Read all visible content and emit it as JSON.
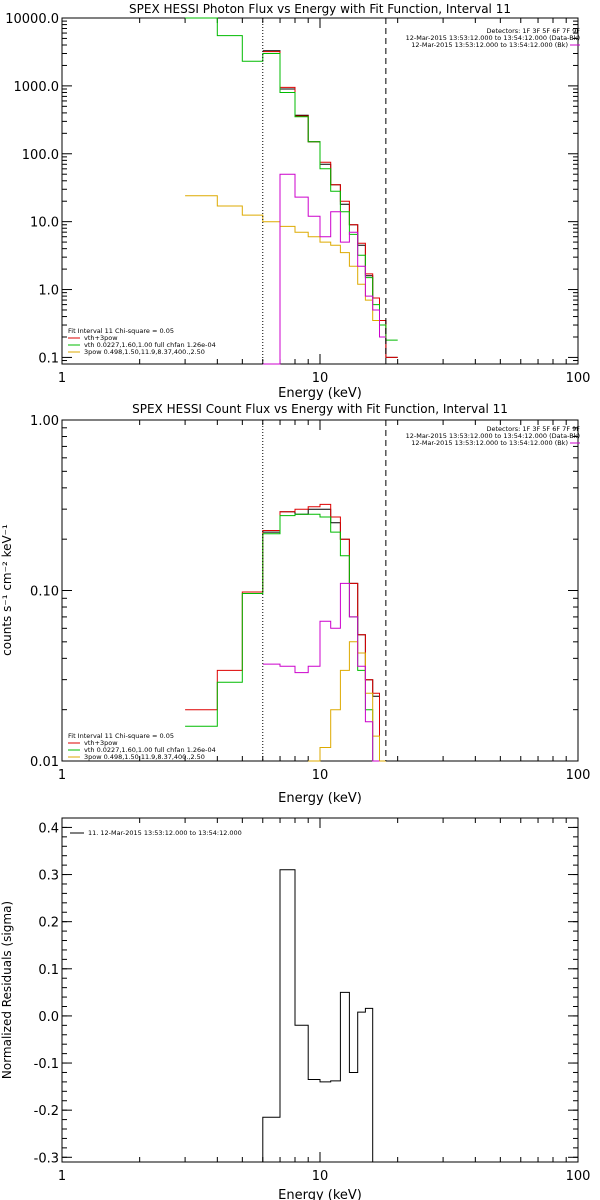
{
  "chart_data": [
    {
      "type": "line",
      "title": "SPEX HESSI Photon Flux vs Energy with Fit Function, Interval 11",
      "xlabel": "Energy (keV)",
      "ylabel": "",
      "x_scale": "log",
      "y_scale": "log",
      "xlim": [
        1,
        100
      ],
      "ylim": [
        0.08,
        10000
      ],
      "x_ticks": [
        1,
        10,
        100
      ],
      "x_tick_labels": [
        "1",
        "10",
        "100"
      ],
      "y_ticks": [
        0.1,
        1,
        10,
        100,
        1000,
        10000
      ],
      "y_tick_labels": [
        "0.1",
        "1.0",
        "10.0",
        "100.0",
        "1000.0",
        "10000.0"
      ],
      "grid": false,
      "vlines": [
        {
          "x": 6.0,
          "style": "dotted",
          "color": "#000000"
        },
        {
          "x": 18.0,
          "style": "dashed",
          "color": "#000000"
        }
      ],
      "legend_right": [
        {
          "text": "Detectors: 1F 3F 5F 6F 7F 9F",
          "color": "#000000"
        },
        {
          "text": "12-Mar-2015 13:53:12.000 to 13:54:12.000 (Data-Bk)",
          "color": "#000000"
        },
        {
          "text": "12-Mar-2015 13:53:12.000 to 13:54:12.000 (Bk)",
          "color": "#cc00cc"
        }
      ],
      "legend_left": [
        {
          "text": "Fit Interval 11    Chi-square = 0.05",
          "color": "#000000"
        },
        {
          "text": "vth+3pow",
          "color": "#dd0000"
        },
        {
          "text": "vth 0.0227,1.60,1.00  full chfan 1.26e-04",
          "color": "#00bb00"
        },
        {
          "text": "3pow 0.498,1.50,11.9,8.37,400.,2.50",
          "color": "#ddaa00"
        }
      ],
      "edges": [
        3.0,
        4.0,
        5.0,
        6.0,
        7.0,
        8.0,
        9.0,
        10.0,
        11.0,
        12.0,
        13.0,
        14.0,
        15.0,
        16.0,
        17.0,
        18.0,
        20.0
      ],
      "series": [
        {
          "name": "Data-Bk",
          "color": "#000000",
          "from_bin": 3,
          "values": [
            3300,
            900,
            370,
            150,
            70,
            35,
            18,
            9,
            4.5,
            1.6,
            0.75,
            0.35,
            0.1
          ]
        },
        {
          "name": "vth+3pow",
          "color": "#dd0000",
          "from_bin": 3,
          "values": [
            3200,
            950,
            360,
            150,
            75,
            35,
            20,
            9,
            4.8,
            1.7,
            0.75,
            0.35,
            0.1
          ]
        },
        {
          "name": "vth",
          "color": "#00bb00",
          "from_bin": 0,
          "values": [
            10000,
            5500,
            2300,
            3000,
            800,
            350,
            150,
            60,
            28,
            14,
            6.5,
            3.2,
            1.5,
            0.6,
            0.3,
            0.18
          ]
        },
        {
          "name": "3pow",
          "color": "#ddaa00",
          "from_bin": 0,
          "values": [
            24,
            17,
            12.5,
            10,
            8.5,
            7,
            6,
            5,
            4.5,
            3.5,
            2.2,
            1.2,
            0.7,
            0.35,
            0.2
          ]
        },
        {
          "name": "Bk",
          "color": "#cc00cc",
          "from_bin": 3,
          "values": [
            0.08,
            50,
            23,
            12,
            6,
            14,
            5,
            7,
            2.2,
            0.8,
            0.5,
            0.2
          ]
        }
      ]
    },
    {
      "type": "line",
      "title": "SPEX HESSI Count Flux vs Energy with Fit Function, Interval 11",
      "xlabel": "Energy (keV)",
      "ylabel": "counts s⁻¹ cm⁻² keV⁻¹",
      "x_scale": "log",
      "y_scale": "log",
      "xlim": [
        1,
        100
      ],
      "ylim": [
        0.01,
        1.0
      ],
      "x_ticks": [
        1,
        10,
        100
      ],
      "x_tick_labels": [
        "1",
        "10",
        "100"
      ],
      "y_ticks": [
        0.01,
        0.1,
        1.0
      ],
      "y_tick_labels": [
        "0.01",
        "0.10",
        "1.00"
      ],
      "grid": false,
      "vlines": [
        {
          "x": 6.0,
          "style": "dotted",
          "color": "#000000"
        },
        {
          "x": 18.0,
          "style": "dashed",
          "color": "#000000"
        }
      ],
      "legend_right": [
        {
          "text": "Detectors: 1F 3F 5F 6F 7F 9F",
          "color": "#000000"
        },
        {
          "text": "12-Mar-2015 13:53:12.000 to 13:54:12.000 (Data-Bk)",
          "color": "#000000"
        },
        {
          "text": "12-Mar-2015 13:53:12.000 to 13:54:12.000 (Bk)",
          "color": "#cc00cc"
        }
      ],
      "legend_left": [
        {
          "text": "Fit Interval 11    Chi-square = 0.05",
          "color": "#000000"
        },
        {
          "text": "vth+3pow",
          "color": "#dd0000"
        },
        {
          "text": "vth 0.0227,1.60,1.00  full chfan 1.26e-04",
          "color": "#00bb00"
        },
        {
          "text": "3pow 0.498,1.50,11.9,8.37,400.,2.50",
          "color": "#ddaa00"
        }
      ],
      "edges": [
        3.0,
        4.0,
        5.0,
        6.0,
        7.0,
        8.0,
        9.0,
        10.0,
        11.0,
        12.0,
        13.0,
        14.0,
        15.0,
        16.0,
        17.0,
        18.0,
        20.0
      ],
      "series": [
        {
          "name": "Data-Bk",
          "color": "#000000",
          "from_bin": 3,
          "values": [
            0.22,
            0.29,
            0.28,
            0.3,
            0.3,
            0.25,
            0.2,
            0.11,
            0.055,
            0.03,
            0.024,
            0.005
          ]
        },
        {
          "name": "vth+3pow",
          "color": "#dd0000",
          "from_bin": 0,
          "values": [
            0.02,
            0.034,
            0.098,
            0.225,
            0.29,
            0.3,
            0.31,
            0.32,
            0.27,
            0.2,
            0.11,
            0.055,
            0.03,
            0.025,
            0.005
          ]
        },
        {
          "name": "vth",
          "color": "#00bb00",
          "from_bin": 0,
          "values": [
            0.016,
            0.029,
            0.096,
            0.215,
            0.275,
            0.28,
            0.28,
            0.27,
            0.22,
            0.16,
            0.07,
            0.034,
            0.02,
            0.0095
          ]
        },
        {
          "name": "3pow",
          "color": "#ddaa00",
          "from_bin": 6,
          "values": [
            0.005,
            0.012,
            0.02,
            0.034,
            0.05,
            0.043,
            0.025,
            0.014,
            0.0085
          ]
        },
        {
          "name": "Bk",
          "color": "#cc00cc",
          "from_bin": 3,
          "values": [
            0.037,
            0.036,
            0.033,
            0.036,
            0.066,
            0.06,
            0.11,
            0.07,
            0.036,
            0.017,
            0.0088
          ]
        }
      ]
    },
    {
      "type": "line",
      "title": "",
      "xlabel": "Energy (keV)",
      "ylabel": "Normalized Residuals (sigma)",
      "x_scale": "log",
      "y_scale": "linear",
      "xlim": [
        1,
        100
      ],
      "ylim": [
        -0.31,
        0.42
      ],
      "x_ticks": [
        1,
        10,
        100
      ],
      "x_tick_labels": [
        "1",
        "10",
        "100"
      ],
      "y_ticks": [
        -0.3,
        -0.2,
        -0.1,
        0.0,
        0.1,
        0.2,
        0.3,
        0.4
      ],
      "y_tick_labels": [
        "-0.3",
        "-0.2",
        "-0.1",
        "0.0",
        "0.1",
        "0.2",
        "0.3",
        "0.4"
      ],
      "grid": false,
      "legend_left": [
        {
          "text": "11. 12-Mar-2015 13:53:12.000 to 13:54:12.000",
          "color": "#000000"
        }
      ],
      "edges": [
        6.0,
        7.0,
        8.0,
        9.0,
        10.0,
        11.0,
        12.0,
        13.0,
        14.0,
        15.0,
        16.0,
        17.0,
        18.0
      ],
      "series": [
        {
          "name": "",
          "color": "#000000",
          "from_bin": 0,
          "drop_to_floor": true,
          "values": [
            -0.215,
            0.31,
            -0.02,
            -0.135,
            -0.14,
            -0.138,
            0.05,
            -0.12,
            0.008,
            0.016
          ]
        }
      ]
    }
  ]
}
